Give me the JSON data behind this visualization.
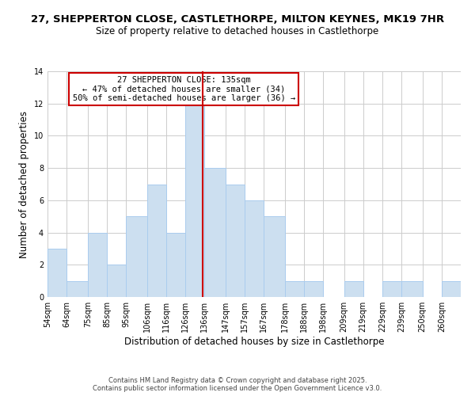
{
  "title": "27, SHEPPERTON CLOSE, CASTLETHORPE, MILTON KEYNES, MK19 7HR",
  "subtitle": "Size of property relative to detached houses in Castlethorpe",
  "xlabel": "Distribution of detached houses by size in Castlethorpe",
  "ylabel": "Number of detached properties",
  "bin_labels": [
    "54sqm",
    "64sqm",
    "75sqm",
    "85sqm",
    "95sqm",
    "106sqm",
    "116sqm",
    "126sqm",
    "136sqm",
    "147sqm",
    "157sqm",
    "167sqm",
    "178sqm",
    "188sqm",
    "198sqm",
    "209sqm",
    "219sqm",
    "229sqm",
    "239sqm",
    "250sqm",
    "260sqm"
  ],
  "bin_edges": [
    54,
    64,
    75,
    85,
    95,
    106,
    116,
    126,
    136,
    147,
    157,
    167,
    178,
    188,
    198,
    209,
    219,
    229,
    239,
    250,
    260
  ],
  "counts": [
    3,
    1,
    4,
    2,
    5,
    7,
    4,
    12,
    8,
    7,
    6,
    5,
    1,
    1,
    0,
    1,
    0,
    1,
    1,
    0,
    1
  ],
  "bar_color": "#ccdff0",
  "bar_edge_color": "#aaccee",
  "property_value": 135,
  "vline_color": "#cc0000",
  "box_text_line1": "27 SHEPPERTON CLOSE: 135sqm",
  "box_text_line2": "← 47% of detached houses are smaller (34)",
  "box_text_line3": "50% of semi-detached houses are larger (36) →",
  "box_edge_color": "#cc0000",
  "ylim": [
    0,
    14
  ],
  "yticks": [
    0,
    2,
    4,
    6,
    8,
    10,
    12,
    14
  ],
  "background_color": "#ffffff",
  "grid_color": "#cccccc",
  "footer1": "Contains HM Land Registry data © Crown copyright and database right 2025.",
  "footer2": "Contains public sector information licensed under the Open Government Licence v3.0.",
  "title_fontsize": 9.5,
  "subtitle_fontsize": 8.5,
  "axis_label_fontsize": 8.5,
  "tick_fontsize": 7,
  "annotation_fontsize": 7.5,
  "footer_fontsize": 6.0
}
